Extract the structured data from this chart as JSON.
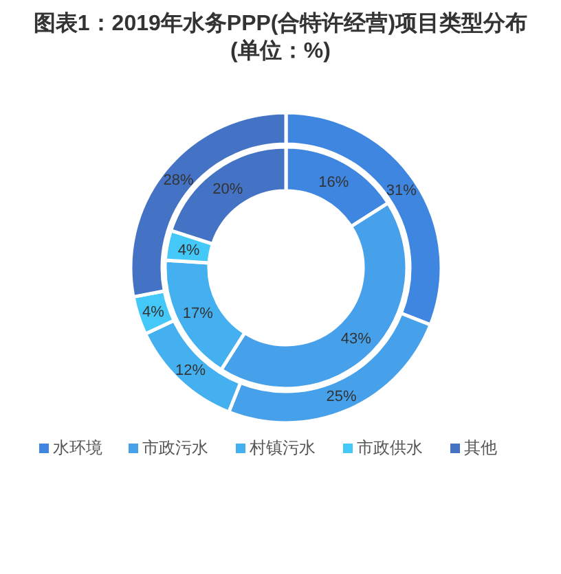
{
  "chart_data": {
    "type": "donut",
    "title": "图表1：2019年水务PPP(合特许经营)项目类型分布\n(单位：%)",
    "categories": [
      "水环境",
      "市政污水",
      "村镇污水",
      "市政供水",
      "其他"
    ],
    "colors": [
      "#3f86e0",
      "#46a0ea",
      "#45b0f0",
      "#44c8f8",
      "#4472c4"
    ],
    "series": [
      {
        "values": [
          31,
          25,
          12,
          4,
          28
        ],
        "value_labels": [
          "31%",
          "25%",
          "12%",
          "4%",
          "28%"
        ]
      },
      {
        "values": [
          16,
          43,
          17,
          4,
          20
        ],
        "value_labels": [
          "16%",
          "43%",
          "17%",
          "4%",
          "20%"
        ]
      }
    ],
    "legend": "bottom"
  }
}
